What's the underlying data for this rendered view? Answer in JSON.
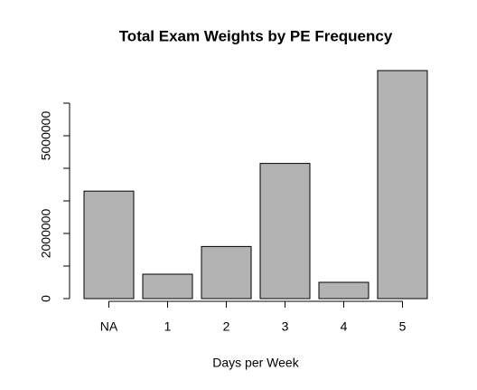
{
  "chart_data": {
    "type": "bar",
    "title": "Total Exam Weights by PE Frequency",
    "xlabel": "Days per Week",
    "categories": [
      "NA",
      "1",
      "2",
      "3",
      "4",
      "5"
    ],
    "values": [
      3300000,
      750000,
      1600000,
      4150000,
      500000,
      7000000
    ],
    "color": "#b3b3b3",
    "ylim": [
      0,
      7000000
    ],
    "yticks": [
      0,
      2000000,
      5000000
    ],
    "yminor_ticks": [
      1000000,
      3000000,
      4000000,
      6000000
    ]
  }
}
